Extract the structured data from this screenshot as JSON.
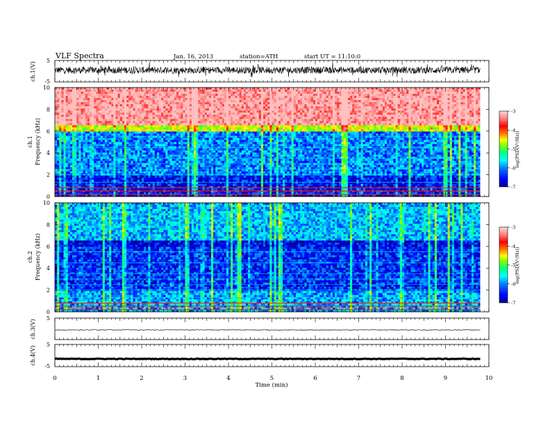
{
  "header": {
    "title": "VLF  Spectra",
    "date": "Jan. 16, 2013",
    "station": "station=ATH",
    "start": "start  UT  =   11:10:0"
  },
  "chart_data": [
    {
      "type": "line",
      "panel": "ch1-waveform",
      "ylabel": "ch.1(V)",
      "ylim": [
        -5,
        5
      ],
      "yticks": [
        "5",
        "-5"
      ],
      "x_range": [
        0,
        9.8
      ],
      "signal": "noisy waveform, baseline about 0.5 V, amplitude about 1-3 V"
    },
    {
      "type": "heatmap",
      "panel": "ch1-spectrogram",
      "ylabel": "ch.1\nFrequency  (kHz)",
      "ylim": [
        0,
        10
      ],
      "yticks": [
        "0",
        "2",
        "4",
        "6",
        "8",
        "10"
      ],
      "x_range": [
        0,
        9.8
      ],
      "colorbar": {
        "label": "log(PSD(V²/Hz))",
        "range": [
          -7,
          -3
        ],
        "ticks": [
          "-3",
          "-4",
          "-5",
          "-6",
          "-7"
        ]
      },
      "bands_khz": [
        {
          "from": 6.5,
          "to": 10,
          "log_psd": -3.2
        },
        {
          "from": 6.0,
          "to": 6.5,
          "log_psd": -4.8
        },
        {
          "from": 2.0,
          "to": 6.0,
          "log_psd": -6.2
        },
        {
          "from": 0,
          "to": 2.0,
          "log_psd": -6.6
        }
      ],
      "lines_khz": [
        0.2,
        0.5,
        0.8,
        1.3,
        2.0,
        2.5,
        3.0,
        3.5,
        4.5,
        5.5
      ]
    },
    {
      "type": "heatmap",
      "panel": "ch2-spectrogram",
      "ylabel": "ch.2\nFrequency  (kHz)",
      "ylim": [
        0,
        10
      ],
      "yticks": [
        "0",
        "2",
        "4",
        "6",
        "8",
        "10"
      ],
      "x_range": [
        0,
        9.8
      ],
      "colorbar": {
        "label": "log(PSD(V²/Hz))",
        "range": [
          -7,
          -3
        ],
        "ticks": [
          "-3",
          "-4",
          "-5",
          "-6",
          "-7"
        ]
      },
      "bands_khz": [
        {
          "from": 6.5,
          "to": 10,
          "log_psd": -6.0
        },
        {
          "from": 6.0,
          "to": 6.5,
          "log_psd": -6.7
        },
        {
          "from": 2.0,
          "to": 6.0,
          "log_psd": -6.5
        },
        {
          "from": 0,
          "to": 2.0,
          "log_psd": -6.1
        }
      ],
      "lines_khz": [
        0.2,
        0.5,
        0.8,
        1.3,
        2.0,
        2.5,
        3.0,
        3.5,
        4.5,
        5.5
      ]
    },
    {
      "type": "line",
      "panel": "ch3-waveform",
      "ylabel": "ch.3(V)",
      "ylim": [
        -5,
        5
      ],
      "yticks": [
        "5"
      ],
      "x_range": [
        0,
        9.8
      ],
      "signal": "flat trace at about -0.5 V"
    },
    {
      "type": "line",
      "panel": "ch4-waveform",
      "ylabel": "ch.4(V)",
      "ylim": [
        -5,
        5
      ],
      "yticks": [
        "5",
        "-5"
      ],
      "x_range": [
        0,
        9.8
      ],
      "signal": "thick flat trace at about -1.5 V"
    }
  ],
  "x_axis": {
    "label": "Time  (min)",
    "ticks": [
      "0",
      "1",
      "2",
      "3",
      "4",
      "5",
      "6",
      "7",
      "8",
      "9",
      "10"
    ],
    "range": [
      0,
      10
    ]
  },
  "colors": {
    "colormap": [
      "#000090",
      "#0000ff",
      "#0080ff",
      "#00ffff",
      "#00ff80",
      "#80ff00",
      "#ffff00",
      "#ff8000",
      "#ff0000",
      "#ff8080",
      "#ffc0c0"
    ]
  }
}
